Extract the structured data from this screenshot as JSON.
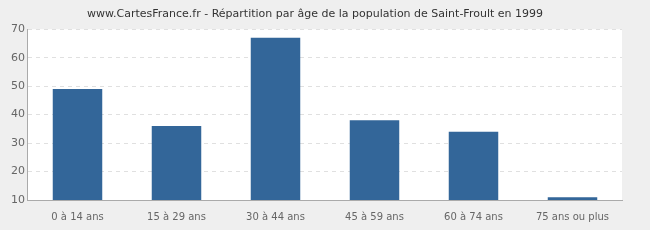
{
  "chart_data": {
    "type": "bar",
    "title": "www.CartesFrance.fr - Répartition par âge de la population de Saint-Froult en 1999",
    "categories": [
      "0 à 14 ans",
      "15 à 29 ans",
      "30 à 44 ans",
      "45 à 59 ans",
      "60 à 74 ans",
      "75 ans ou plus"
    ],
    "values": [
      49,
      36,
      67,
      38,
      34,
      11
    ],
    "color": "#336699",
    "ylim": [
      10,
      70
    ],
    "yticks": [
      10,
      20,
      30,
      40,
      50,
      60,
      70
    ],
    "grid": true
  }
}
